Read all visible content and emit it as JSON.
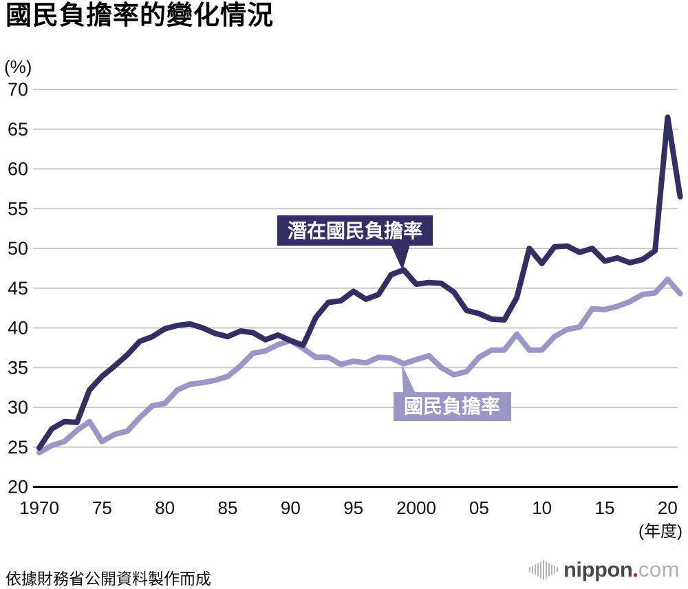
{
  "title": "國民負擔率的變化情況",
  "source_note": "依據財務省公開資料製作而成",
  "logo": {
    "icon": "soundwave-bars-icon",
    "name": "nippon",
    "dot": ".",
    "tld": "com",
    "dot_color": "#e60012"
  },
  "chart_data": {
    "type": "line",
    "title": "國民負擔率的變化情況",
    "x_range": [
      1970,
      2021
    ],
    "ylim": [
      20,
      70
    ],
    "grid": "horizontal gridlines only, legend as callout boxes on plot",
    "colors": {
      "grid": "#c9c9c9",
      "axis": "#000000",
      "text": "#111111"
    },
    "y_axis": {
      "unit_label": "(%)",
      "ticks": [
        20,
        25,
        30,
        35,
        40,
        45,
        50,
        55,
        60,
        65,
        70
      ]
    },
    "x_axis": {
      "unit_label": "(年度)",
      "ticks": [
        {
          "year": 1970,
          "label": "1970"
        },
        {
          "year": 1975,
          "label": "75"
        },
        {
          "year": 1980,
          "label": "80"
        },
        {
          "year": 1985,
          "label": "85"
        },
        {
          "year": 1990,
          "label": "90"
        },
        {
          "year": 1995,
          "label": "95"
        },
        {
          "year": 2000,
          "label": "2000"
        },
        {
          "year": 2005,
          "label": "05"
        },
        {
          "year": 2010,
          "label": "10"
        },
        {
          "year": 2015,
          "label": "15"
        },
        {
          "year": 2020,
          "label": "20"
        }
      ]
    },
    "years": [
      1970,
      1971,
      1972,
      1973,
      1974,
      1975,
      1976,
      1977,
      1978,
      1979,
      1980,
      1981,
      1982,
      1983,
      1984,
      1985,
      1986,
      1987,
      1988,
      1989,
      1990,
      1991,
      1992,
      1993,
      1994,
      1995,
      1996,
      1997,
      1998,
      1999,
      2000,
      2001,
      2002,
      2003,
      2004,
      2005,
      2006,
      2007,
      2008,
      2009,
      2010,
      2011,
      2012,
      2013,
      2014,
      2015,
      2016,
      2017,
      2018,
      2019,
      2020,
      2021
    ],
    "series": [
      {
        "id": "potential",
        "name": "潛在國民負擔率",
        "color": "#332f63",
        "values": [
          24.9,
          27.3,
          28.2,
          28.1,
          32.2,
          33.9,
          35.2,
          36.6,
          38.3,
          38.9,
          39.9,
          40.3,
          40.5,
          40.0,
          39.3,
          38.9,
          39.6,
          39.4,
          38.5,
          39.1,
          38.4,
          37.8,
          41.3,
          43.2,
          43.4,
          44.6,
          43.6,
          44.2,
          46.7,
          47.3,
          45.5,
          45.7,
          45.6,
          44.5,
          42.2,
          41.8,
          41.1,
          41.0,
          43.8,
          50.0,
          48.1,
          50.2,
          50.3,
          49.5,
          50.0,
          48.4,
          48.8,
          48.2,
          48.6,
          49.7,
          66.5,
          56.5
        ]
      },
      {
        "id": "actual",
        "name": "國民負擔率",
        "color": "#9a97c7",
        "values": [
          24.3,
          25.2,
          25.7,
          27.1,
          28.2,
          25.7,
          26.6,
          27.0,
          28.7,
          30.2,
          30.5,
          32.2,
          32.9,
          33.1,
          33.4,
          33.9,
          35.2,
          36.8,
          37.1,
          37.9,
          38.4,
          37.4,
          36.3,
          36.3,
          35.4,
          35.8,
          35.6,
          36.3,
          36.2,
          35.5,
          36.0,
          36.5,
          35.0,
          34.1,
          34.5,
          36.3,
          37.2,
          37.2,
          39.2,
          37.2,
          37.2,
          38.9,
          39.8,
          40.1,
          42.4,
          42.3,
          42.7,
          43.3,
          44.2,
          44.4,
          46.1,
          44.3
        ]
      }
    ],
    "callouts": [
      {
        "id": "potential",
        "text": "潛在國民負擔率",
        "bg": "#332f63",
        "fg": "#ffffff",
        "points_to": "peak of dark line near 1999 (47.3%)"
      },
      {
        "id": "actual",
        "text": "國民負擔率",
        "bg": "#9a97c7",
        "fg": "#ffffff",
        "points_to": "light line near 1998 (36.2%)"
      }
    ]
  }
}
